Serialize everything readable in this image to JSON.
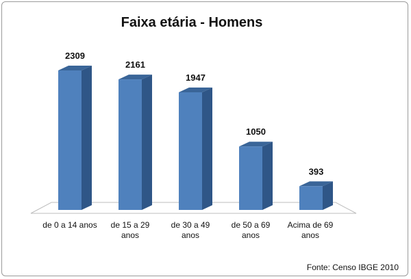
{
  "chart_data": {
    "type": "bar",
    "title": "Faixa etária - Homens",
    "categories": [
      [
        "de 0 a 14 anos"
      ],
      [
        "de 15 a 29",
        "anos"
      ],
      [
        "de 30 a 49",
        "anos"
      ],
      [
        "de 50 a 69",
        "anos"
      ],
      [
        "Acima de 69",
        "anos"
      ]
    ],
    "values": [
      2309,
      2161,
      1947,
      1050,
      393
    ],
    "data_labels": [
      "2309",
      "2161",
      "1947",
      "1050",
      "393"
    ],
    "ylim": [
      0,
      2309
    ],
    "grid": false,
    "style": "3d-column",
    "colors": {
      "bar_front": "#4f81bd",
      "bar_side": "#2f5687",
      "bar_top": "#3a6598",
      "floor": "#ffffff",
      "floor_stroke": "#bdbdbd"
    }
  },
  "source": "Fonte: Censo IBGE 2010"
}
